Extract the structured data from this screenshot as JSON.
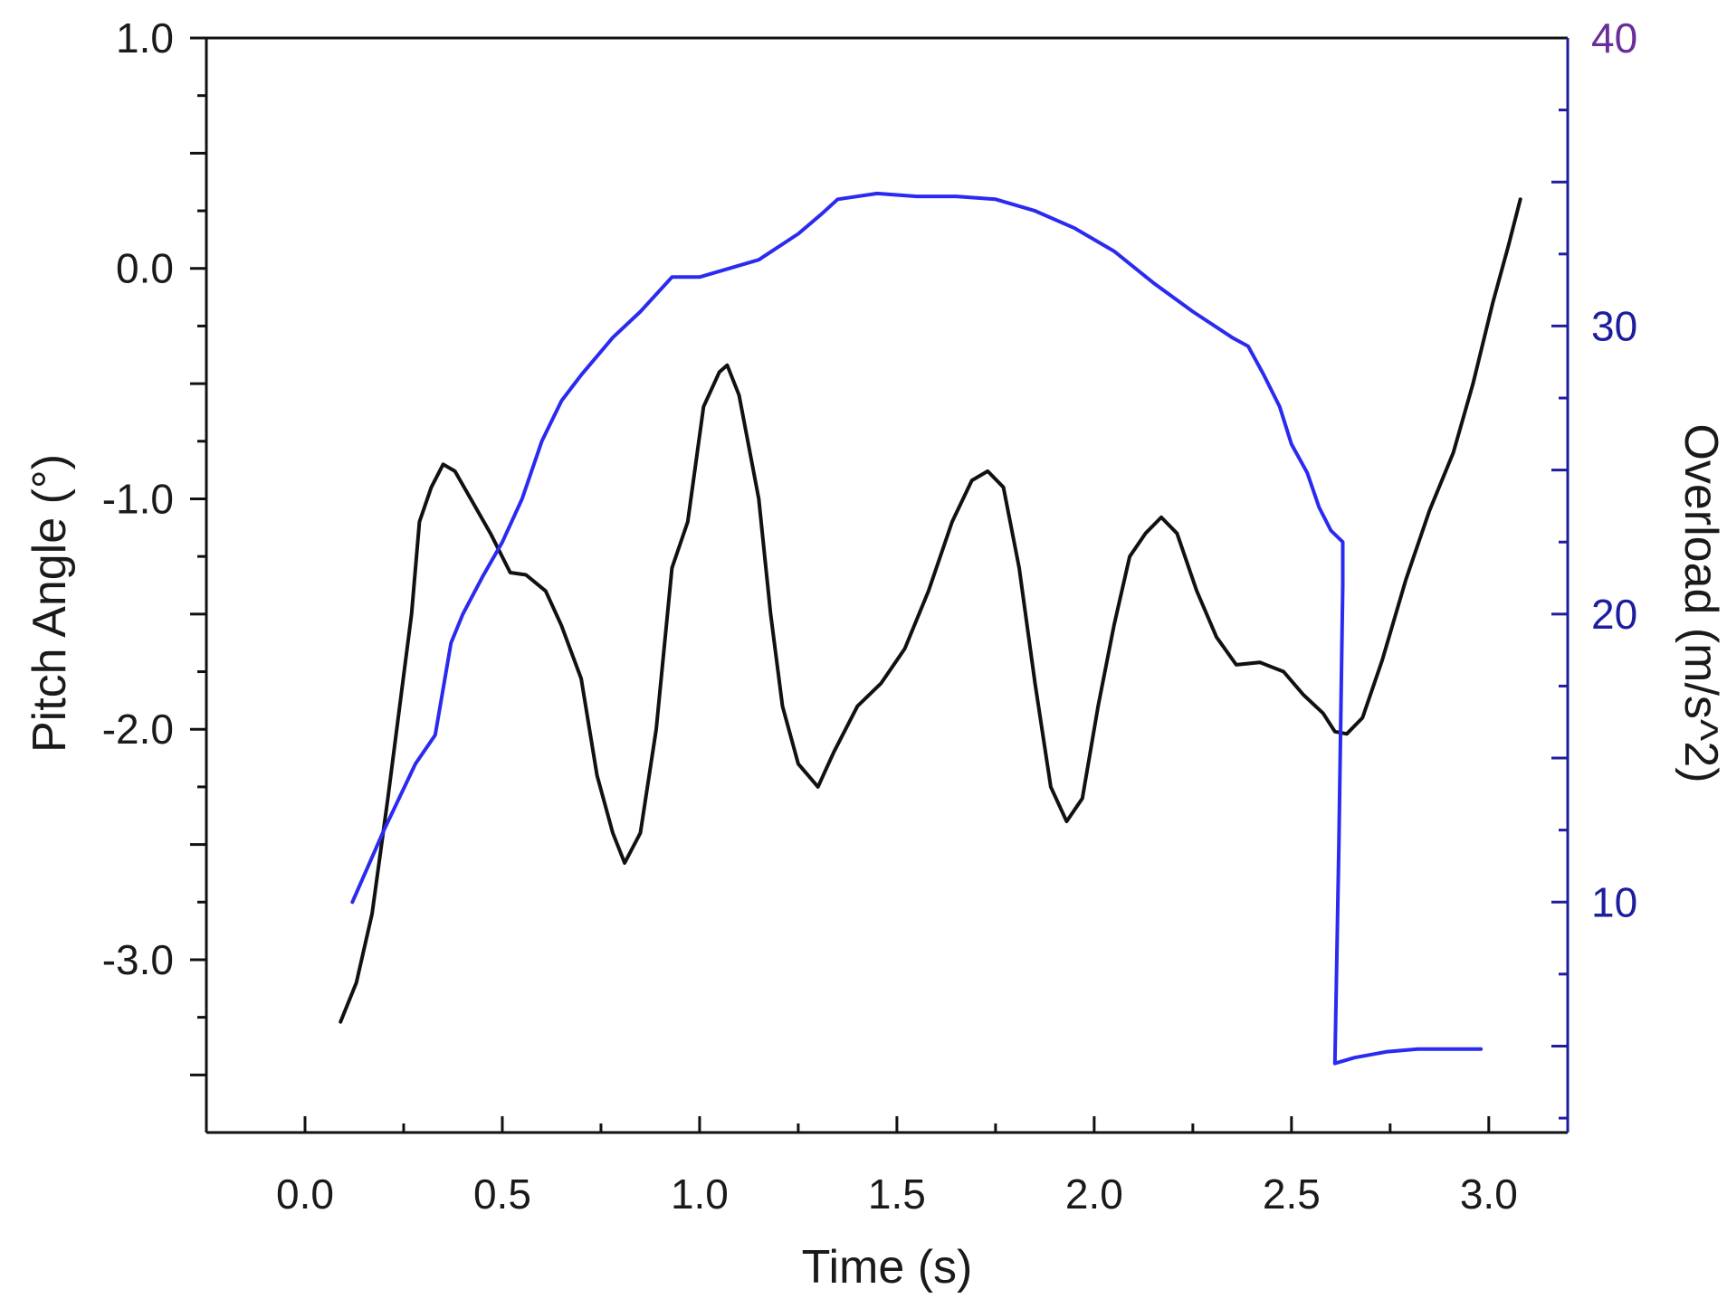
{
  "chart_data": {
    "type": "line",
    "title": "",
    "xlabel": "Time (s)",
    "ylabel_left": "Pitch Angle (°)",
    "ylabel_right": "Overload (m/s^2)",
    "xlim": [
      -0.25,
      3.2
    ],
    "ylim_left": [
      -3.75,
      1.0
    ],
    "ylim_right": [
      2.0,
      40.0
    ],
    "x_ticks": [
      "0.0",
      "0.5",
      "1.0",
      "1.5",
      "2.0",
      "2.5",
      "3.0"
    ],
    "y_left_ticks": [
      "1.0",
      "0.0",
      "-1.0",
      "-2.0",
      "-3.0"
    ],
    "y_right_ticks": [
      "40",
      "30",
      "20",
      "10"
    ],
    "grid": false,
    "legend": "none",
    "colors": {
      "pitch": "#111111",
      "overload": "#2a2af0",
      "right_axis": "#1d1d9e",
      "right_tick_label": "#6a2d9a"
    },
    "series": [
      {
        "axis": "left",
        "color": "#111111",
        "points": [
          [
            0.09,
            -3.27
          ],
          [
            0.13,
            -3.1
          ],
          [
            0.17,
            -2.8
          ],
          [
            0.21,
            -2.3
          ],
          [
            0.24,
            -1.9
          ],
          [
            0.27,
            -1.5
          ],
          [
            0.29,
            -1.1
          ],
          [
            0.32,
            -0.95
          ],
          [
            0.35,
            -0.85
          ],
          [
            0.38,
            -0.88
          ],
          [
            0.42,
            -1.0
          ],
          [
            0.47,
            -1.15
          ],
          [
            0.52,
            -1.32
          ],
          [
            0.56,
            -1.33
          ],
          [
            0.61,
            -1.4
          ],
          [
            0.65,
            -1.55
          ],
          [
            0.7,
            -1.78
          ],
          [
            0.74,
            -2.2
          ],
          [
            0.78,
            -2.45
          ],
          [
            0.81,
            -2.58
          ],
          [
            0.85,
            -2.45
          ],
          [
            0.89,
            -2.0
          ],
          [
            0.93,
            -1.3
          ],
          [
            0.97,
            -1.1
          ],
          [
            1.01,
            -0.6
          ],
          [
            1.05,
            -0.45
          ],
          [
            1.07,
            -0.42
          ],
          [
            1.1,
            -0.55
          ],
          [
            1.15,
            -1.0
          ],
          [
            1.18,
            -1.5
          ],
          [
            1.21,
            -1.9
          ],
          [
            1.25,
            -2.15
          ],
          [
            1.3,
            -2.25
          ],
          [
            1.34,
            -2.1
          ],
          [
            1.4,
            -1.9
          ],
          [
            1.46,
            -1.8
          ],
          [
            1.52,
            -1.65
          ],
          [
            1.58,
            -1.4
          ],
          [
            1.64,
            -1.1
          ],
          [
            1.69,
            -0.92
          ],
          [
            1.73,
            -0.88
          ],
          [
            1.77,
            -0.95
          ],
          [
            1.81,
            -1.3
          ],
          [
            1.85,
            -1.8
          ],
          [
            1.89,
            -2.25
          ],
          [
            1.93,
            -2.4
          ],
          [
            1.97,
            -2.3
          ],
          [
            2.01,
            -1.9
          ],
          [
            2.05,
            -1.55
          ],
          [
            2.09,
            -1.25
          ],
          [
            2.13,
            -1.15
          ],
          [
            2.17,
            -1.08
          ],
          [
            2.21,
            -1.15
          ],
          [
            2.26,
            -1.4
          ],
          [
            2.31,
            -1.6
          ],
          [
            2.36,
            -1.72
          ],
          [
            2.42,
            -1.71
          ],
          [
            2.48,
            -1.75
          ],
          [
            2.53,
            -1.85
          ],
          [
            2.58,
            -1.93
          ],
          [
            2.61,
            -2.01
          ],
          [
            2.64,
            -2.02
          ],
          [
            2.68,
            -1.95
          ],
          [
            2.73,
            -1.7
          ],
          [
            2.79,
            -1.35
          ],
          [
            2.85,
            -1.05
          ],
          [
            2.91,
            -0.8
          ],
          [
            2.96,
            -0.5
          ],
          [
            3.01,
            -0.15
          ],
          [
            3.05,
            0.1
          ],
          [
            3.08,
            0.3
          ]
        ]
      },
      {
        "axis": "right",
        "color": "#2a2af0",
        "points": [
          [
            0.12,
            10.0
          ],
          [
            0.2,
            12.5
          ],
          [
            0.28,
            14.8
          ],
          [
            0.33,
            15.8
          ],
          [
            0.37,
            19.0
          ],
          [
            0.4,
            20.0
          ],
          [
            0.45,
            21.3
          ],
          [
            0.5,
            22.5
          ],
          [
            0.55,
            24.0
          ],
          [
            0.6,
            26.0
          ],
          [
            0.65,
            27.4
          ],
          [
            0.7,
            28.3
          ],
          [
            0.78,
            29.6
          ],
          [
            0.85,
            30.5
          ],
          [
            0.93,
            31.7
          ],
          [
            1.0,
            31.7
          ],
          [
            1.05,
            31.9
          ],
          [
            1.15,
            32.3
          ],
          [
            1.25,
            33.2
          ],
          [
            1.31,
            33.9
          ],
          [
            1.35,
            34.4
          ],
          [
            1.45,
            34.6
          ],
          [
            1.55,
            34.5
          ],
          [
            1.65,
            34.5
          ],
          [
            1.75,
            34.4
          ],
          [
            1.85,
            34.0
          ],
          [
            1.95,
            33.4
          ],
          [
            2.05,
            32.6
          ],
          [
            2.15,
            31.5
          ],
          [
            2.25,
            30.5
          ],
          [
            2.35,
            29.6
          ],
          [
            2.39,
            29.3
          ],
          [
            2.43,
            28.3
          ],
          [
            2.47,
            27.2
          ],
          [
            2.5,
            25.9
          ],
          [
            2.54,
            24.9
          ],
          [
            2.57,
            23.7
          ],
          [
            2.6,
            22.9
          ],
          [
            2.63,
            22.5
          ],
          [
            2.63,
            21.0
          ],
          [
            2.62,
            12.0
          ],
          [
            2.61,
            4.4
          ],
          [
            2.66,
            4.6
          ],
          [
            2.74,
            4.8
          ],
          [
            2.82,
            4.9
          ],
          [
            2.98,
            4.9
          ]
        ]
      }
    ]
  }
}
